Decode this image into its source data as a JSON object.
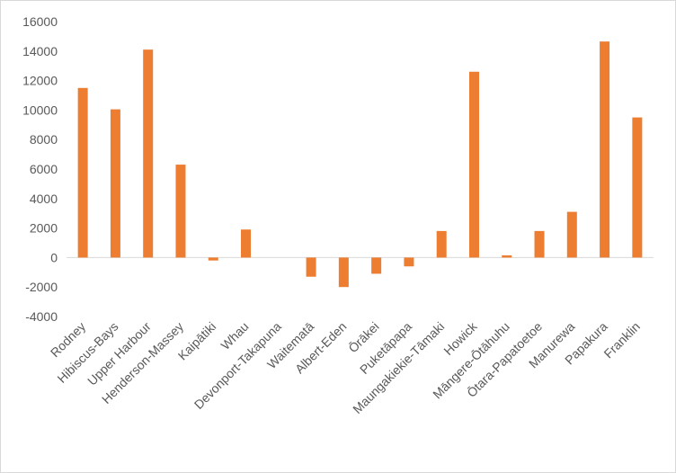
{
  "chart_data": {
    "type": "bar",
    "title": "",
    "xlabel": "",
    "ylabel": "",
    "categories": [
      "Rodney",
      "Hibiscus-Bays",
      "Upper Harbour",
      "Henderson-Massey",
      "Kaipātiki",
      "Whau",
      "Devonport-Takapuna",
      "Waitematā",
      "Albert-Eden",
      "Ōrākei",
      "Puketāpapa",
      "Maungakiekie-Tāmaki",
      "Howick",
      "Māngere-Ōtāhuhu",
      "Ōtara-Papatoetoe",
      "Manurewa",
      "Papakura",
      "Franklin"
    ],
    "values": [
      11500,
      10050,
      14100,
      6300,
      -200,
      1900,
      0,
      -1300,
      -2000,
      -1100,
      -600,
      1800,
      12600,
      150,
      1800,
      3100,
      14650,
      9500
    ],
    "ylim": [
      -4000,
      16000
    ],
    "yticks": [
      -4000,
      -2000,
      0,
      2000,
      4000,
      6000,
      8000,
      10000,
      12000,
      14000,
      16000
    ],
    "grid": false,
    "legend": "none",
    "bar_color": "#ED7D31",
    "axis_color": "#d9d9d9",
    "label_color": "#595959"
  }
}
